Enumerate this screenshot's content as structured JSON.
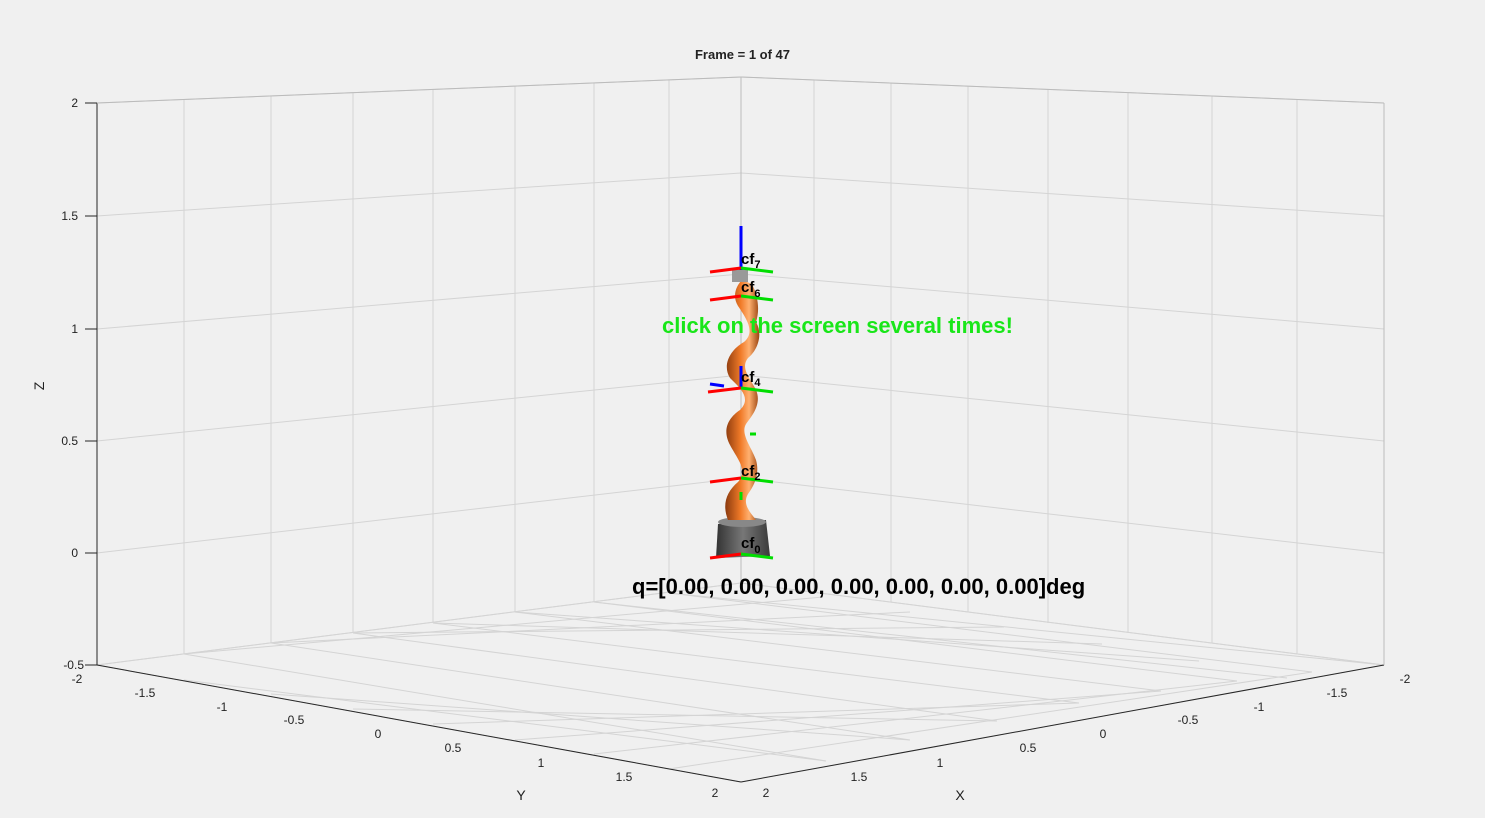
{
  "title": "Frame = 1 of 47",
  "axes": {
    "z_label": "Z",
    "x_label": "X",
    "y_label": "Y",
    "z_ticks": [
      "2",
      "1.5",
      "1",
      "0.5",
      "0",
      "-0.5"
    ],
    "y_ticks": [
      "-2",
      "-1.5",
      "-1",
      "-0.5",
      "0",
      "0.5",
      "1",
      "1.5",
      "2"
    ],
    "x_ticks": [
      "2",
      "1.5",
      "1",
      "0.5",
      "0",
      "-0.5",
      "-1",
      "-1.5",
      "-2"
    ]
  },
  "annotations": {
    "hint": "click on the screen several times!",
    "joint_values": "q=[0.00, 0.00, 0.00, 0.00, 0.00, 0.00, 0.00]deg"
  },
  "frames": {
    "f0": "cf",
    "f0_sub": "0",
    "f2": "cf",
    "f2_sub": "2",
    "f4": "cf",
    "f4_sub": "4",
    "f6": "cf",
    "f6_sub": "6",
    "f7": "cf",
    "f7_sub": "7"
  },
  "colors": {
    "robot_body": "#d2691e",
    "robot_base": "#555555",
    "frame_x": "#ff0000",
    "frame_y": "#00dd00",
    "frame_z": "#0000ff",
    "hint": "#19e619"
  }
}
